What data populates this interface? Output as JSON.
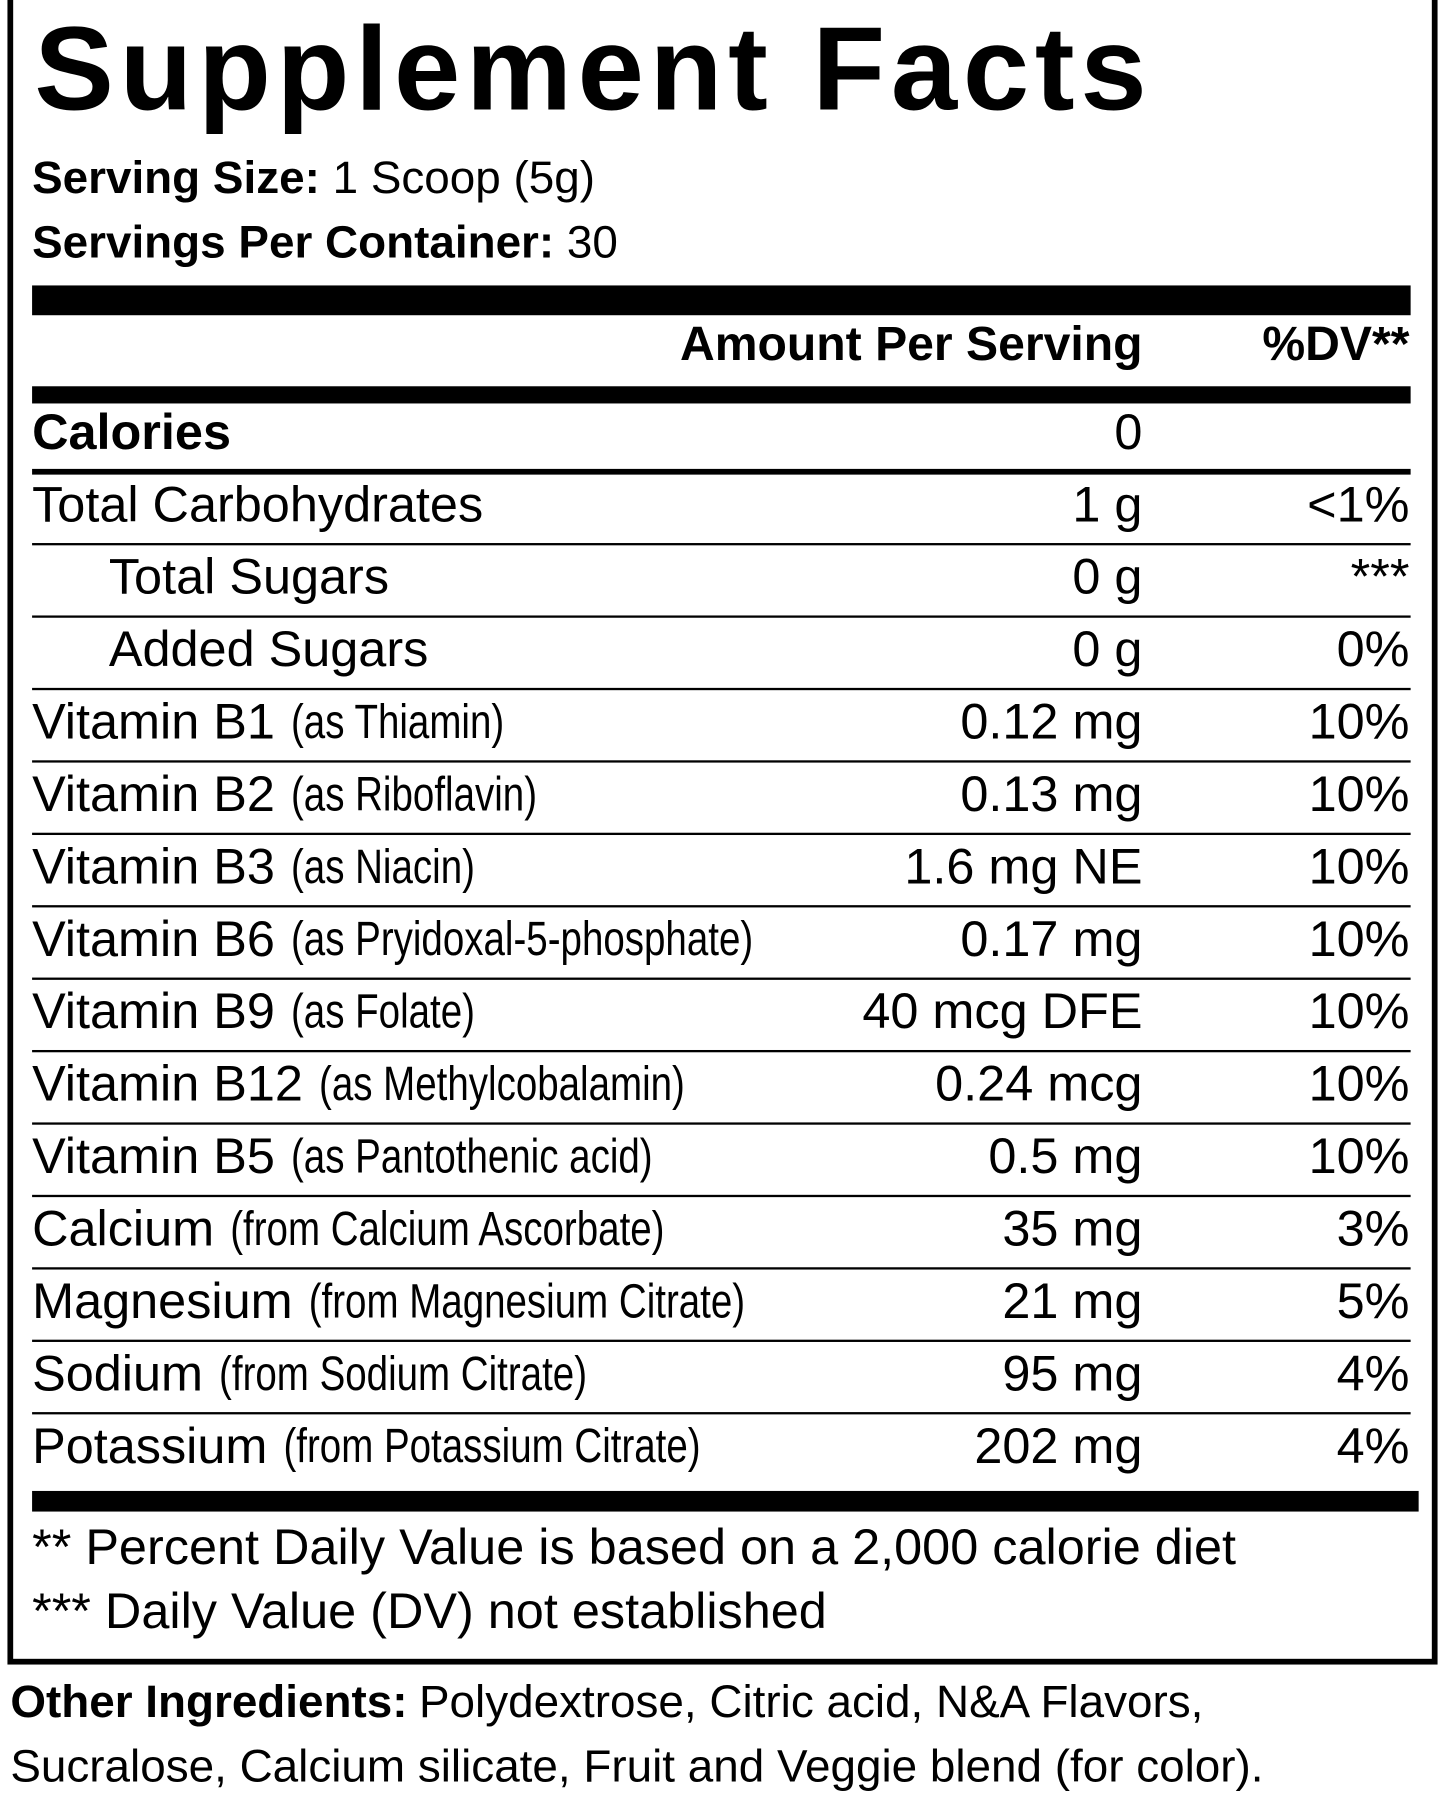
{
  "header": {
    "title": "Supplement Facts",
    "serving_size": {
      "label": "Serving Size:",
      "value": "1 Scoop (5g)"
    },
    "servings_per_container": {
      "label": "Servings Per Container:",
      "value": "30"
    }
  },
  "table": {
    "columns": {
      "amount": "Amount Per Serving",
      "dv": "%DV**"
    },
    "rows": [
      {
        "name": "Calories",
        "amount": "0",
        "bold": true
      },
      {
        "name": "Total Carbohydrates",
        "amount": "1 g",
        "dv": "<1%"
      },
      {
        "name": "Total Sugars",
        "amount": "0 g",
        "dv": "***",
        "indent": true
      },
      {
        "name": "Added Sugars",
        "amount": "0 g",
        "dv": "0%",
        "indent": true
      },
      {
        "name": "Vitamin B1",
        "note": "(as Thiamin)",
        "amount": "0.12 mg",
        "dv": "10%"
      },
      {
        "name": "Vitamin B2",
        "note": "(as Riboflavin)",
        "amount": "0.13 mg",
        "dv": "10%"
      },
      {
        "name": "Vitamin B3",
        "note": "(as Niacin)",
        "amount": "1.6 mg NE",
        "dv": "10%"
      },
      {
        "name": "Vitamin B6",
        "note": "(as Pryidoxal-5-phosphate)",
        "amount": "0.17 mg",
        "dv": "10%"
      },
      {
        "name": "Vitamin B9",
        "note": "(as Folate)",
        "amount": "40 mcg DFE",
        "dv": "10%"
      },
      {
        "name": "Vitamin B12",
        "note": "(as Methylcobalamin)",
        "amount": "0.24 mcg",
        "dv": "10%"
      },
      {
        "name": "Vitamin B5",
        "note": "(as Pantothenic acid)",
        "amount": "0.5 mg",
        "dv": "10%"
      },
      {
        "name": "Calcium",
        "note": "(from Calcium Ascorbate)",
        "amount": "35 mg",
        "dv": "3%"
      },
      {
        "name": "Magnesium",
        "note": "(from Magnesium Citrate)",
        "amount": "21 mg",
        "dv": "5%"
      },
      {
        "name": "Sodium",
        "note": "(from Sodium Citrate)",
        "amount": "95 mg",
        "dv": "4%"
      },
      {
        "name": "Potassium",
        "note": "(from Potassium Citrate)",
        "amount": "202 mg",
        "dv": "4%"
      }
    ]
  },
  "footnotes": [
    "** Percent Daily Value is based on a 2,000 calorie diet",
    "*** Daily Value (DV) not established"
  ],
  "other_ingredients": {
    "label": "Other Ingredients:",
    "lines": [
      "Polydextrose, Citric acid, N&A Flavors,",
      "Sucralose, Calcium silicate, Fruit and Veggie blend (for color)."
    ]
  }
}
